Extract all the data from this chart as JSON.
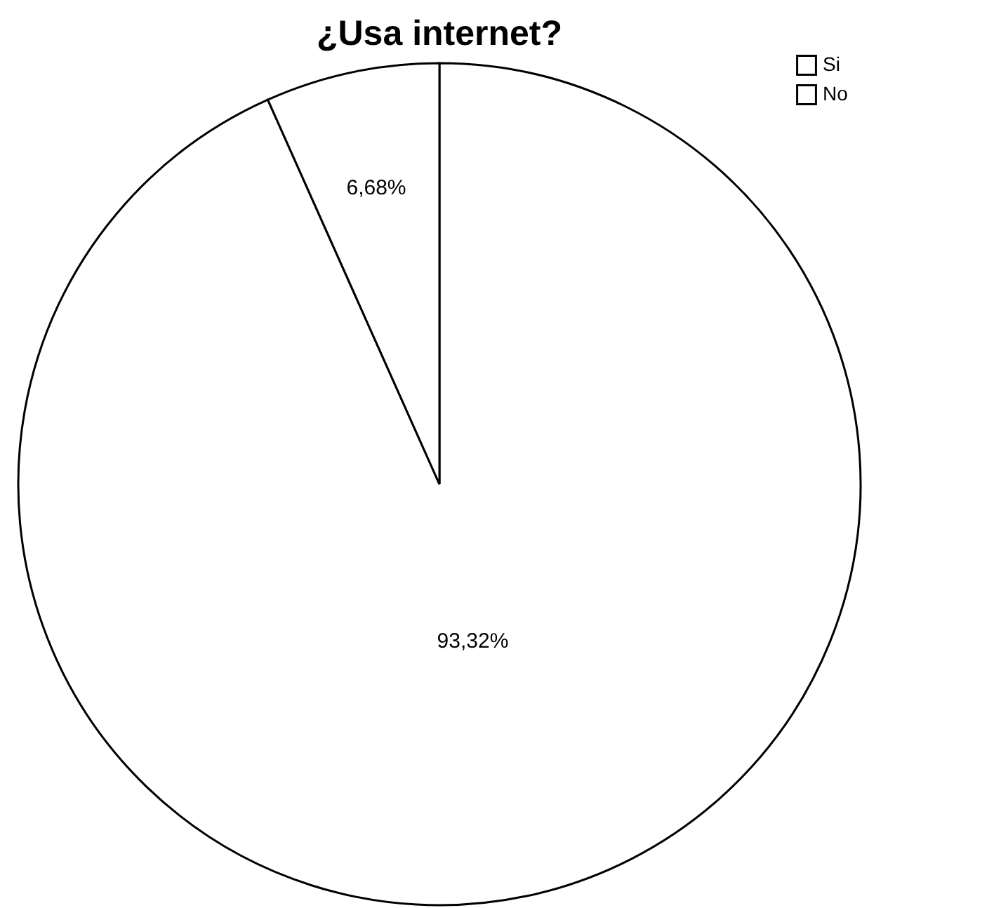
{
  "chart_data": {
    "type": "pie",
    "title": "¿Usa internet?",
    "categories": [
      "Si",
      "No"
    ],
    "values": [
      93.32,
      6.68
    ],
    "colors": [
      "#ffffff",
      "#ffffff"
    ],
    "value_labels": [
      "93,32%",
      "6,68%"
    ],
    "legend": "top right"
  }
}
